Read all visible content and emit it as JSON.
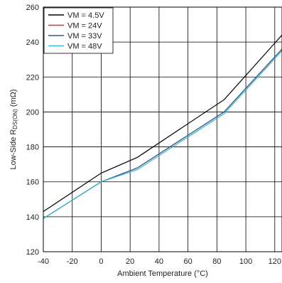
{
  "chart_data": {
    "type": "line",
    "title": "",
    "xlabel": "Ambient Temperature (°C)",
    "ylabel": {
      "prefix": "Low-Side R",
      "subscript": "DS(ON)",
      "suffix": " (mΩ)"
    },
    "xlim": [
      -40,
      125
    ],
    "ylim": [
      120,
      260
    ],
    "xticks": [
      -40,
      -20,
      0,
      20,
      40,
      60,
      80,
      100,
      120
    ],
    "yticks": [
      120,
      140,
      160,
      180,
      200,
      220,
      240,
      260
    ],
    "grid": true,
    "legend_position": "top-left",
    "series": [
      {
        "name": "VM = 4.5V",
        "color": "#000000",
        "x": [
          -40,
          0,
          25,
          85,
          125
        ],
        "y": [
          143,
          165,
          174,
          207,
          244
        ]
      },
      {
        "name": "VM = 24V",
        "color": "#e03030",
        "x": [
          -40,
          0,
          25,
          85,
          125
        ],
        "y": [
          139,
          160,
          168,
          200,
          236
        ]
      },
      {
        "name": "VM = 33V",
        "color": "#2a5d8a",
        "x": [
          -40,
          0,
          25,
          85,
          125
        ],
        "y": [
          139,
          160,
          168,
          200,
          236
        ]
      },
      {
        "name": "VM = 48V",
        "color": "#30b8d8",
        "x": [
          -40,
          0,
          25,
          85,
          125
        ],
        "y": [
          139,
          160,
          167,
          199,
          235
        ]
      }
    ]
  }
}
